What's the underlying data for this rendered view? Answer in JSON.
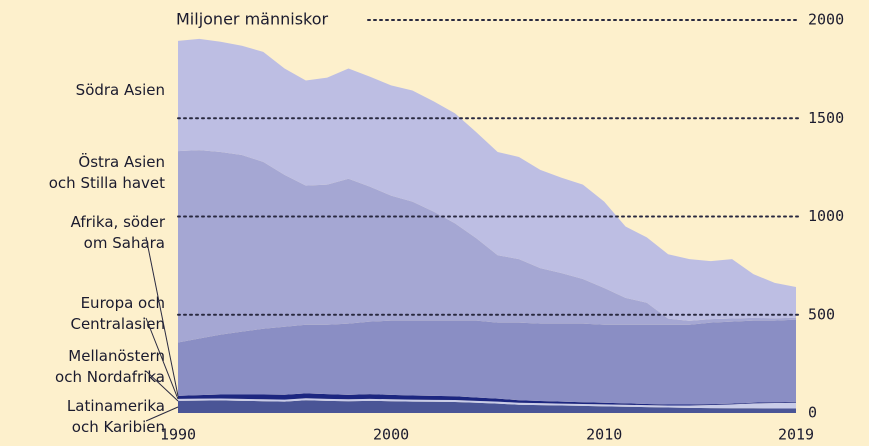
{
  "chart_data": {
    "type": "stacked_area",
    "ylabel": "Miljoner människor",
    "x": [
      1990,
      1991,
      1992,
      1993,
      1994,
      1995,
      1996,
      1997,
      1998,
      1999,
      2000,
      2001,
      2002,
      2003,
      2004,
      2005,
      2006,
      2007,
      2008,
      2009,
      2010,
      2011,
      2012,
      2013,
      2014,
      2015,
      2016,
      2017,
      2018,
      2019
    ],
    "xlim": [
      1990,
      2019
    ],
    "xticks": [
      1990,
      2000,
      2010,
      2019
    ],
    "ylim": [
      0,
      2000
    ],
    "yticks": [
      0,
      500,
      1000,
      1500,
      2000
    ],
    "grid": true,
    "series": [
      {
        "name": "Latinamerika\noch Karibien",
        "color": "#4a5596",
        "values": [
          62,
          63,
          64,
          62,
          60,
          58,
          65,
          62,
          60,
          62,
          60,
          58,
          57,
          56,
          52,
          48,
          42,
          40,
          38,
          36,
          34,
          32,
          30,
          28,
          26,
          25,
          24,
          24,
          23,
          23
        ]
      },
      {
        "name": "Mellanöstern\noch Nordafrika",
        "color": "#c9cce8",
        "values": [
          10,
          10,
          10,
          10,
          10,
          10,
          10,
          10,
          10,
          10,
          10,
          10,
          10,
          10,
          10,
          10,
          10,
          10,
          10,
          10,
          10,
          10,
          10,
          10,
          12,
          16,
          20,
          25,
          28,
          30
        ]
      },
      {
        "name": "Europa och\nCentralasien",
        "color": "#1c2680",
        "values": [
          15,
          18,
          20,
          22,
          24,
          25,
          25,
          24,
          22,
          24,
          22,
          21,
          20,
          19,
          17,
          15,
          13,
          11,
          10,
          9,
          8,
          7,
          6,
          5,
          5,
          4,
          4,
          4,
          4,
          4
        ]
      },
      {
        "name": "Afrika, söder\nom Sahara",
        "color": "#8a8ec4",
        "values": [
          272,
          288,
          305,
          320,
          335,
          346,
          349,
          353,
          363,
          369,
          378,
          381,
          383,
          385,
          391,
          387,
          395,
          394,
          397,
          400,
          397,
          400,
          403,
          406,
          406,
          415,
          417,
          417,
          415,
          418
        ]
      },
      {
        "name": "Östra Asien\noch Stilla havet",
        "color": "#a5a7d3",
        "values": [
          974,
          959,
          929,
          899,
          849,
          773,
          708,
          713,
          737,
          687,
          636,
          606,
          555,
          495,
          419,
          343,
          323,
          282,
          257,
          227,
          187,
          137,
          112,
          31,
          20,
          18,
          16,
          14,
          12,
          10
        ]
      },
      {
        "name": "Södra Asien",
        "color": "#bdbee3",
        "values": [
          561,
          566,
          561,
          556,
          560,
          541,
          535,
          545,
          561,
          560,
          561,
          565,
          561,
          560,
          540,
          525,
          520,
          500,
          485,
          480,
          440,
          363,
          333,
          328,
          314,
          295,
          302,
          223,
          180,
          156
        ]
      }
    ]
  }
}
